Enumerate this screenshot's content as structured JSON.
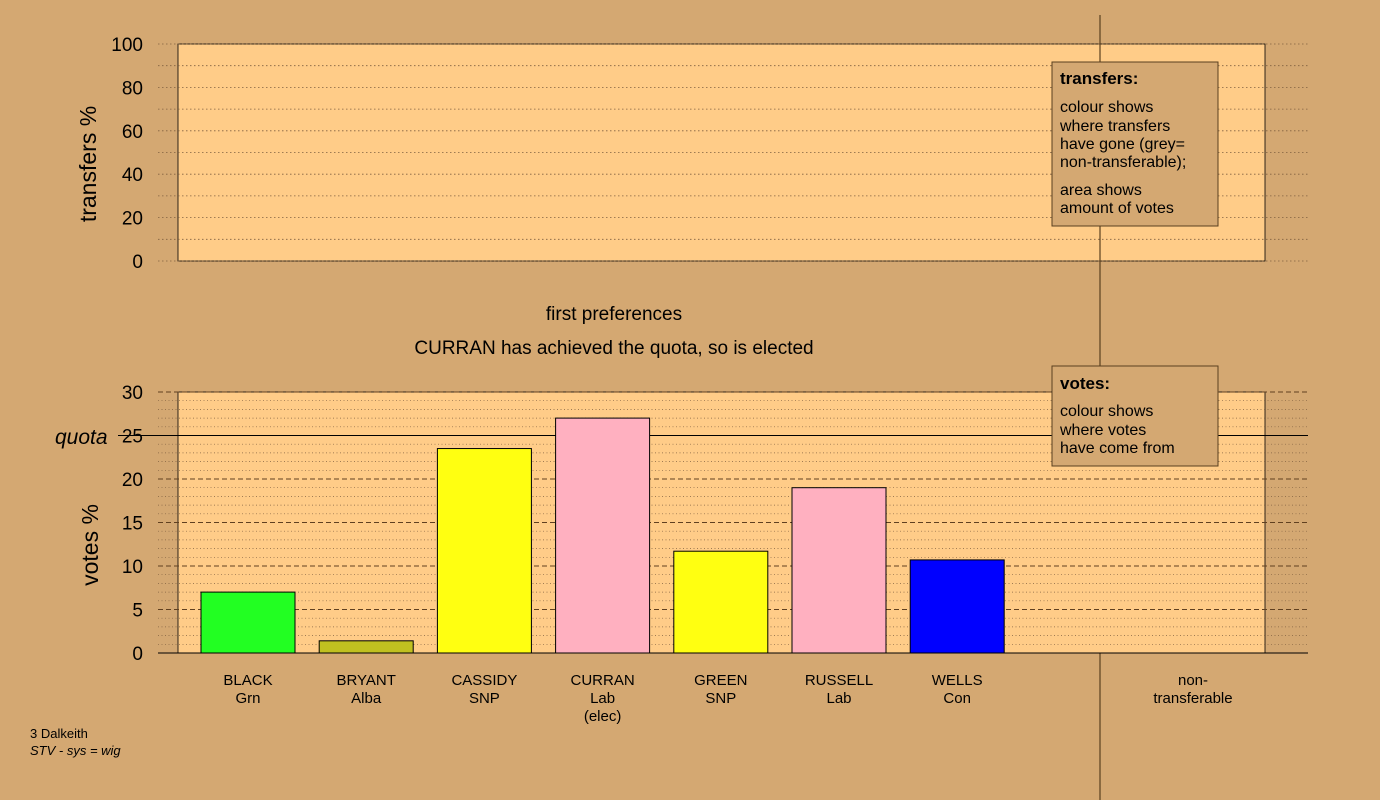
{
  "colors": {
    "background": "#d4a872",
    "plot_bg": "#ffcc88",
    "BLACK": "#22ff22",
    "BRYANT": "#c0c020",
    "CASSIDY": "#ffff11",
    "CURRAN": "#ffb0c0",
    "GREEN": "#ffff11",
    "RUSSELL": "#ffb0c0",
    "WELLS": "#0000ff"
  },
  "headings": {
    "stage": "first preferences",
    "status": "CURRAN has achieved the quota, so is elected"
  },
  "footer": {
    "line1": "3 Dalkeith",
    "line2": "STV - sys = wig"
  },
  "legends": {
    "transfers": {
      "title": "transfers:",
      "lines1": [
        "colour shows",
        "where transfers",
        "have gone (grey=",
        "non-transferable);"
      ],
      "lines2": [
        "area shows",
        "amount of votes"
      ]
    },
    "votes": {
      "title": "votes:",
      "lines1": [
        "colour shows",
        "where votes",
        "have come from"
      ]
    }
  },
  "chart_data": [
    {
      "type": "bar",
      "ylabel": "transfers %",
      "ylim": [
        0,
        100
      ],
      "yticks": [
        0,
        20,
        40,
        60,
        80,
        100
      ],
      "series": []
    },
    {
      "type": "bar",
      "ylabel": "votes %",
      "ylim": [
        0,
        30
      ],
      "yticks": [
        0,
        5,
        10,
        15,
        20,
        25,
        30
      ],
      "quota_label": "quota",
      "quota": 25,
      "categories": [
        {
          "name": "BLACK",
          "party": "Grn",
          "value": 7.0,
          "color_key": "BLACK"
        },
        {
          "name": "BRYANT",
          "party": "Alba",
          "value": 1.4,
          "color_key": "BRYANT"
        },
        {
          "name": "CASSIDY",
          "party": "SNP",
          "value": 23.5,
          "color_key": "CASSIDY"
        },
        {
          "name": "CURRAN",
          "party": "Lab",
          "note": "(elec)",
          "value": 27.0,
          "color_key": "CURRAN"
        },
        {
          "name": "GREEN",
          "party": "SNP",
          "value": 11.7,
          "color_key": "GREEN"
        },
        {
          "name": "RUSSELL",
          "party": "Lab",
          "value": 19.0,
          "color_key": "RUSSELL"
        },
        {
          "name": "WELLS",
          "party": "Con",
          "value": 10.7,
          "color_key": "WELLS"
        }
      ],
      "nontransferable": {
        "line1": "non-",
        "line2": "transferable",
        "value": 0
      }
    }
  ]
}
